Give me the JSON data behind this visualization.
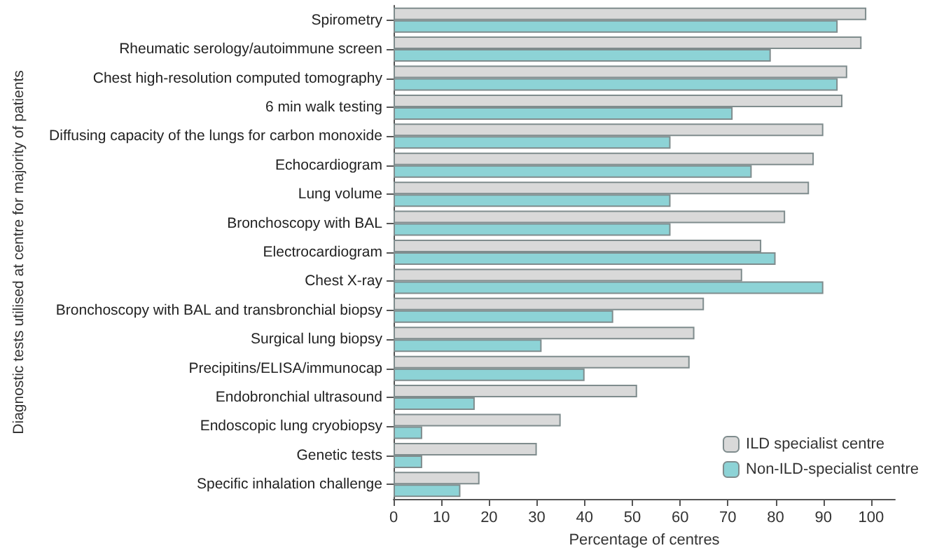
{
  "chart_data": {
    "type": "bar",
    "orientation": "horizontal",
    "xlabel": "Percentage of centres",
    "ylabel": "Diagnostic tests utilised at centre for majority of patients",
    "categories": [
      "Spirometry",
      "Rheumatic serology/autoimmune screen",
      "Chest high-resolution computed tomography",
      "6 min walk testing",
      "Diffusing capacity of the lungs for carbon monoxide",
      "Echocardiogram",
      "Lung volume",
      "Bronchoscopy with BAL",
      "Electrocardiogram",
      "Chest X-ray",
      "Bronchoscopy with BAL and transbronchial biopsy",
      "Surgical lung biopsy",
      "Precipitins/ELISA/immunocap",
      "Endobronchial ultrasound",
      "Endoscopic lung cryobiopsy",
      "Genetic tests",
      "Specific inhalation challenge"
    ],
    "series": [
      {
        "name": "ILD specialist centre",
        "color": "#d9d9d9",
        "values": [
          99,
          98,
          95,
          94,
          90,
          88,
          87,
          82,
          77,
          73,
          65,
          63,
          62,
          51,
          35,
          30,
          18
        ]
      },
      {
        "name": "Non-ILD-specialist centre",
        "color": "#8dd3d6",
        "values": [
          93,
          79,
          93,
          71,
          58,
          75,
          58,
          58,
          80,
          90,
          46,
          31,
          40,
          17,
          6,
          6,
          14
        ]
      }
    ],
    "xlim": [
      0,
      105
    ],
    "xticks": [
      0,
      10,
      20,
      30,
      40,
      50,
      60,
      70,
      80,
      90,
      100
    ],
    "grid": false,
    "legend": "bottom right"
  }
}
